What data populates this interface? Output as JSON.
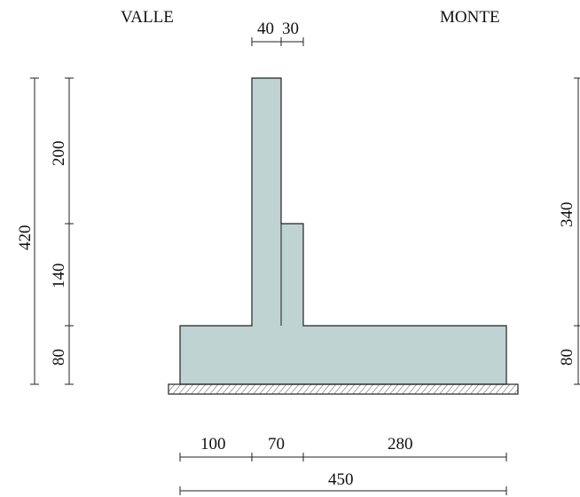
{
  "labels": {
    "valle": "VALLE",
    "monte": "MONTE"
  },
  "dimensions": {
    "top_left_width": "40",
    "top_right_width": "30",
    "left_total": "420",
    "left_upper": "200",
    "left_middle": "140",
    "left_lower": "80",
    "right_upper": "340",
    "right_lower": "80",
    "bottom_toe": "100",
    "bottom_stem": "70",
    "bottom_heel": "280",
    "bottom_total": "450"
  },
  "colors": {
    "wall_fill": "#bfd3d3",
    "outline": "#222222",
    "hatch": "#222222"
  }
}
